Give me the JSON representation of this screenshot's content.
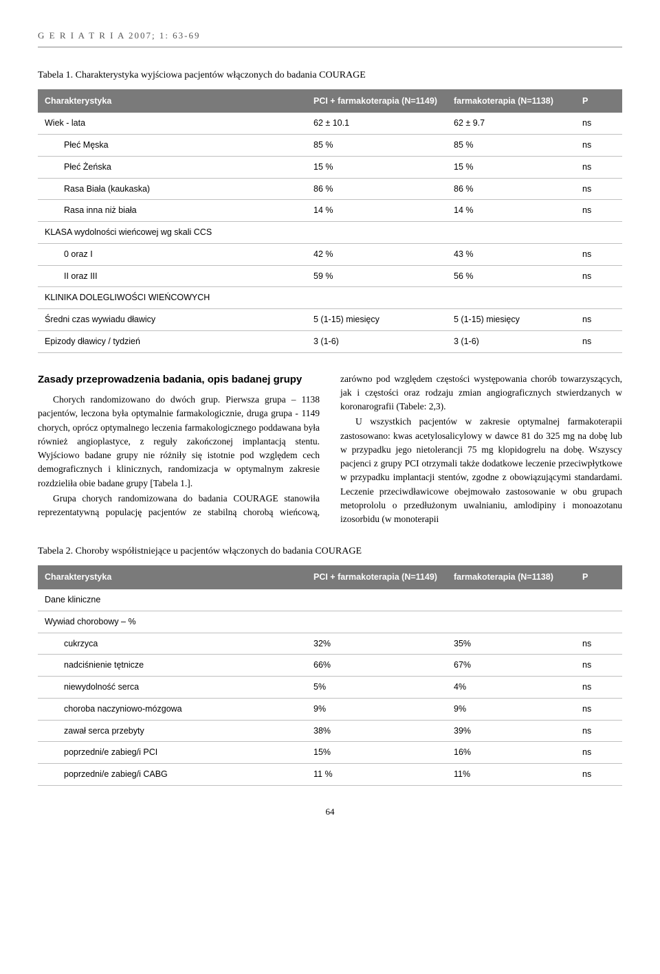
{
  "header": "G E R I A T R I A  2007; 1: 63-69",
  "table1": {
    "caption": "Tabela 1. Charakterystyka wyjściowa pacjentów włączonych do badania COURAGE",
    "columns": [
      "Charakterystyka",
      "PCI + farmakoterapia (N=1149)",
      "farmakoterapia (N=1138)",
      "P"
    ],
    "rows": [
      {
        "label": "Wiek - lata",
        "c2": "62 ± 10.1",
        "c3": "62 ± 9.7",
        "c4": "ns",
        "indent": false
      },
      {
        "label": "Płeć Męska",
        "c2": "85 %",
        "c3": "85 %",
        "c4": "ns",
        "indent": true
      },
      {
        "label": "Płeć Żeńska",
        "c2": "15 %",
        "c3": "15 %",
        "c4": "ns",
        "indent": true
      },
      {
        "label": "Rasa Biała (kaukaska)",
        "c2": "86 %",
        "c3": "86 %",
        "c4": "ns",
        "indent": true
      },
      {
        "label": "Rasa inna niż biała",
        "c2": "14 %",
        "c3": "14 %",
        "c4": "ns",
        "indent": true
      },
      {
        "label": "KLASA wydolności wieńcowej wg skali CCS",
        "c2": "",
        "c3": "",
        "c4": "",
        "indent": false
      },
      {
        "label": "0 oraz I",
        "c2": "42 %",
        "c3": "43 %",
        "c4": "ns",
        "indent": true
      },
      {
        "label": "II oraz III",
        "c2": "59 %",
        "c3": "56 %",
        "c4": "ns",
        "indent": true
      },
      {
        "label": "KLINIKA DOLEGLIWOŚCI WIEŃCOWYCH",
        "c2": "",
        "c3": "",
        "c4": "",
        "indent": false
      },
      {
        "label": "Średni czas wywiadu dławicy",
        "c2": "5 (1-15) miesięcy",
        "c3": "5 (1-15) miesięcy",
        "c4": "ns",
        "indent": false
      },
      {
        "label": "Epizody dławicy / tydzień",
        "c2": "3 (1-6)",
        "c3": "3 (1-6)",
        "c4": "ns",
        "indent": false
      }
    ]
  },
  "body": {
    "subtitle": "Zasady przeprowadzenia badania, opis badanej grupy",
    "p1": "Chorych randomizowano do dwóch grup. Pierwsza grupa – 1138 pacjentów, leczona była optymalnie farmakologicznie, druga grupa - 1149 chorych, oprócz optymalnego leczenia farmakologicznego poddawana była również angioplastyce, z reguły zakończonej implantacją stentu. Wyjściowo badane grupy nie różniły się istotnie pod względem cech demograficznych i klinicznych, randomizacja w optymalnym zakresie rozdzieliła obie badane grupy [Tabela 1.].",
    "p2": "Grupa chorych randomizowana do badania COURAGE stanowiła reprezentatywną populację pacjentów ze stabilną chorobą wieńcową, zarówno pod względem częstości występowania chorób towarzyszących, jak i częstości oraz rodzaju zmian angiograficznych stwierdzanych w koronarografii (Tabele: 2,3).",
    "p3": "U wszystkich pacjentów w zakresie optymalnej farmakoterapii zastosowano: kwas acetylosalicylowy w dawce 81 do 325 mg na dobę lub w przypadku jego nietolerancji 75 mg klopidogrelu na dobę. Wszyscy pacjenci z grupy PCI otrzymali także dodatkowe leczenie przeciwpłytkowe w przypadku implantacji stentów, zgodne z obowiązującymi standardami. Leczenie przeciwdławicowe obejmowało zastosowanie w obu grupach metoprololu o przedłużonym uwalnianiu, amlodipiny i monoazotanu izosorbidu (w monoterapii"
  },
  "table2": {
    "caption": "Tabela 2. Choroby współistniejące u pacjentów włączonych do badania COURAGE",
    "columns": [
      "Charakterystyka",
      "PCI + farmakoterapia (N=1149)",
      "farmakoterapia (N=1138)",
      "P"
    ],
    "rows": [
      {
        "label": "Dane kliniczne",
        "c2": "",
        "c3": "",
        "c4": "",
        "indent": false
      },
      {
        "label": "Wywiad chorobowy – %",
        "c2": "",
        "c3": "",
        "c4": "",
        "indent": false
      },
      {
        "label": "cukrzyca",
        "c2": "32%",
        "c3": "35%",
        "c4": "ns",
        "indent": true
      },
      {
        "label": "nadciśnienie tętnicze",
        "c2": "66%",
        "c3": "67%",
        "c4": "ns",
        "indent": true
      },
      {
        "label": "niewydolność serca",
        "c2": "5%",
        "c3": "4%",
        "c4": "ns",
        "indent": true
      },
      {
        "label": "choroba naczyniowo-mózgowa",
        "c2": "9%",
        "c3": "9%",
        "c4": "ns",
        "indent": true
      },
      {
        "label": "zawał serca przebyty",
        "c2": "38%",
        "c3": "39%",
        "c4": "ns",
        "indent": true
      },
      {
        "label": "poprzedni/e zabieg/i PCI",
        "c2": "15%",
        "c3": "16%",
        "c4": "ns",
        "indent": true
      },
      {
        "label": "poprzedni/e zabieg/i CABG",
        "c2": "11 %",
        "c3": "11%",
        "c4": "ns",
        "indent": true
      }
    ]
  },
  "page_num": "64"
}
